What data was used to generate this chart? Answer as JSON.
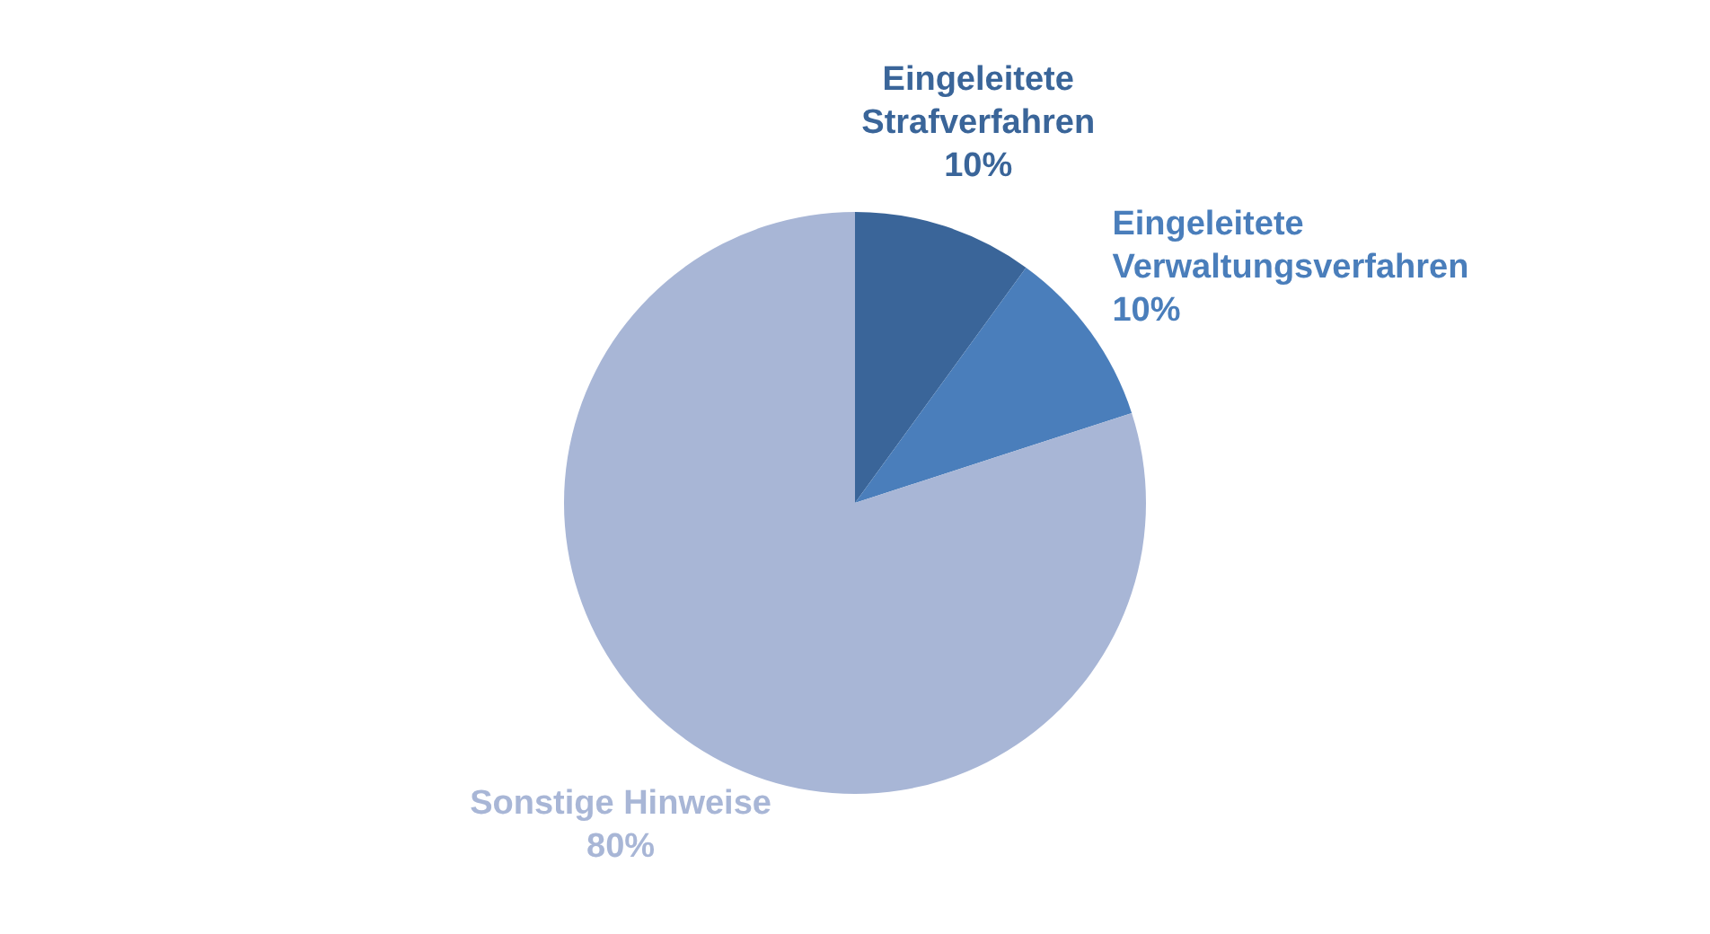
{
  "chart_data": {
    "type": "pie",
    "categories": [
      "Eingeleitete Strafverfahren",
      "Eingeleitete Verwaltungsverfahren",
      "Sonstige Hinweise"
    ],
    "values": [
      10,
      10,
      80
    ],
    "colors": [
      "#3a6599",
      "#4a7ebb",
      "#a8b6d6"
    ],
    "value_labels": [
      "10%",
      "10%",
      "80%"
    ],
    "legend": false
  }
}
